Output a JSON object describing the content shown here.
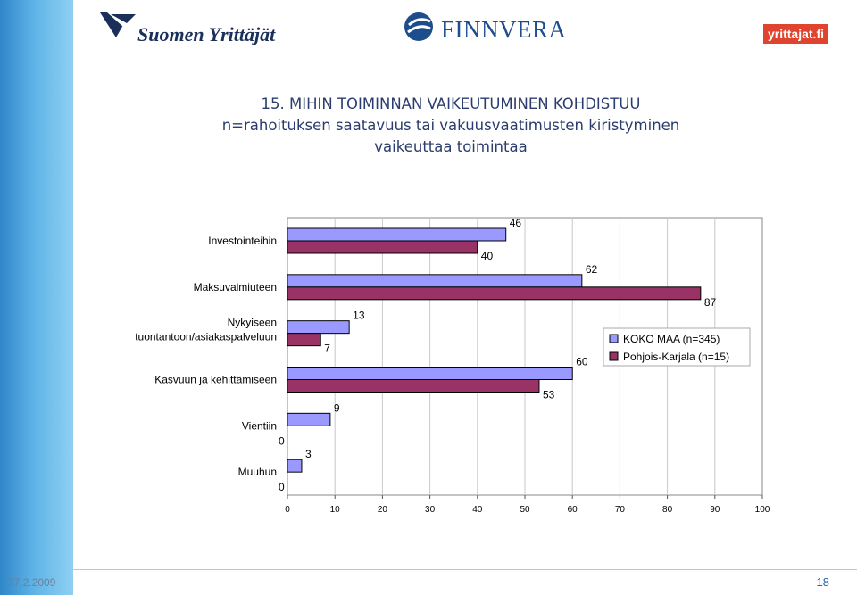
{
  "logos": {
    "suomen_yrittajat": "Suomen Yrittäjät",
    "finnvera": "FINNVERA",
    "yrittajat_fi": "yrittajat.fi"
  },
  "title": {
    "line1": "15. MIHIN TOIMINNAN VAIKEUTUMINEN KOHDISTUU",
    "line2": "n=rahoituksen saatavuus tai vakuusvaatimusten kiristyminen",
    "line3": "vaikeuttaa toimintaa"
  },
  "footer": {
    "date": "27.2.2009",
    "page": "18"
  },
  "chart_data": {
    "type": "bar",
    "orientation": "horizontal",
    "categories": [
      "Investointeihin",
      "Maksuvalmiuteen",
      "Nykyiseen tuontantoon/asiakaspalveluun",
      "Kasvuun ja kehittämiseen",
      "Vientiin",
      "Muuhun"
    ],
    "series": [
      {
        "name": "KOKO MAA (n=345)",
        "values": [
          46,
          62,
          13,
          60,
          9,
          3
        ],
        "color": "#9999ff"
      },
      {
        "name": "Pohjois-Karjala (n=15)",
        "values": [
          40,
          87,
          7,
          53,
          0,
          0
        ],
        "color": "#993366"
      }
    ],
    "xlim": [
      0,
      100
    ],
    "xticks": [
      0,
      10,
      20,
      30,
      40,
      50,
      60,
      70,
      80,
      90,
      100
    ],
    "grid": true,
    "legend": "right"
  }
}
